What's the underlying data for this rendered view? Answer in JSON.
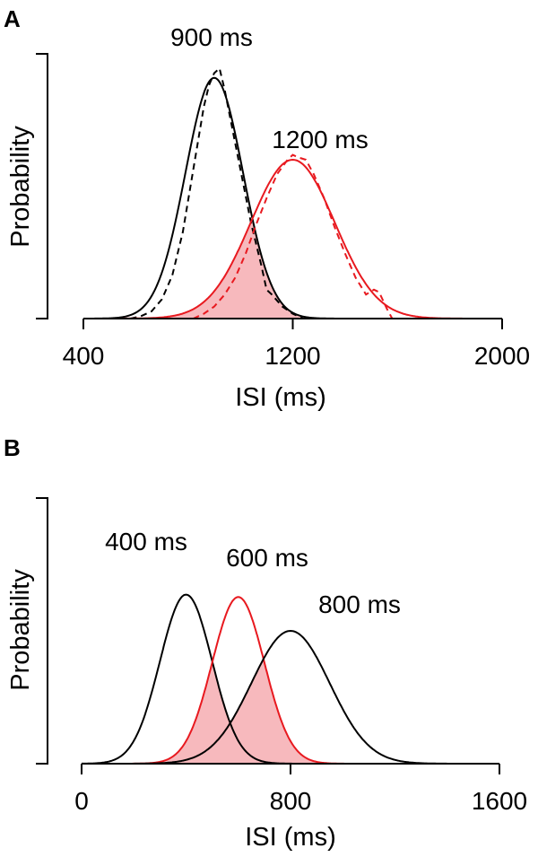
{
  "colors": {
    "black": "#000000",
    "red": "#e8191f",
    "overlap_fill": "#f7b9bd"
  },
  "chart_data": [
    {
      "panel": "A",
      "type": "line",
      "xlabel": "ISI (ms)",
      "ylabel": "Probability",
      "xlim": [
        400,
        2000
      ],
      "xticks": [
        400,
        1200,
        2000
      ],
      "xtick_labels": [
        "400",
        "1200",
        "2000"
      ],
      "ylim": [
        0,
        1.1
      ],
      "overlap_shaded": true,
      "series": [
        {
          "name": "900 ms",
          "label": "900 ms",
          "color": "#000000",
          "style": "solid",
          "kind": "gaussian_fit",
          "mean": 900,
          "sd": 110,
          "peak": 1.0
        },
        {
          "name": "900 ms empirical",
          "color": "#000000",
          "style": "dashed",
          "kind": "empirical",
          "x": [
            580,
            620,
            660,
            700,
            740,
            780,
            820,
            860,
            880,
            900,
            920,
            940,
            960,
            1000,
            1040,
            1080,
            1100,
            1120,
            1160,
            1200,
            1240
          ],
          "y": [
            0.0,
            0.01,
            0.03,
            0.08,
            0.18,
            0.36,
            0.62,
            0.88,
            0.97,
            1.02,
            1.04,
            0.95,
            0.84,
            0.62,
            0.4,
            0.22,
            0.12,
            0.1,
            0.05,
            0.02,
            0.0
          ]
        },
        {
          "name": "1200 ms",
          "label": "1200 ms",
          "color": "#e8191f",
          "style": "solid",
          "kind": "gaussian_fit",
          "mean": 1200,
          "sd": 160,
          "peak": 0.66
        },
        {
          "name": "1200 ms empirical",
          "color": "#e8191f",
          "style": "dashed",
          "kind": "empirical",
          "x": [
            820,
            860,
            900,
            940,
            980,
            1020,
            1060,
            1100,
            1140,
            1180,
            1200,
            1220,
            1250,
            1280,
            1320,
            1360,
            1400,
            1440,
            1480,
            1510,
            1530,
            1560,
            1580
          ],
          "y": [
            0.0,
            0.02,
            0.05,
            0.1,
            0.17,
            0.27,
            0.39,
            0.5,
            0.6,
            0.66,
            0.68,
            0.67,
            0.66,
            0.6,
            0.5,
            0.38,
            0.27,
            0.17,
            0.1,
            0.12,
            0.11,
            0.04,
            0.0
          ]
        }
      ]
    },
    {
      "panel": "B",
      "type": "line",
      "xlabel": "ISI (ms)",
      "ylabel": "Probability",
      "xlim": [
        0,
        1600
      ],
      "xticks": [
        0,
        800,
        1600
      ],
      "xtick_labels": [
        "0",
        "800",
        "1600"
      ],
      "ylim": [
        0,
        1.1
      ],
      "overlap_shaded": true,
      "series": [
        {
          "name": "400 ms",
          "label": "400 ms",
          "color": "#000000",
          "style": "solid",
          "kind": "gaussian",
          "mean": 400,
          "sd": 100,
          "peak": 0.7
        },
        {
          "name": "600 ms",
          "label": "600 ms",
          "color": "#e8191f",
          "style": "solid",
          "kind": "gaussian",
          "mean": 600,
          "sd": 100,
          "peak": 0.69
        },
        {
          "name": "800 ms",
          "label": "800 ms",
          "color": "#000000",
          "style": "solid",
          "kind": "gaussian",
          "mean": 800,
          "sd": 150,
          "peak": 0.55
        }
      ]
    }
  ]
}
